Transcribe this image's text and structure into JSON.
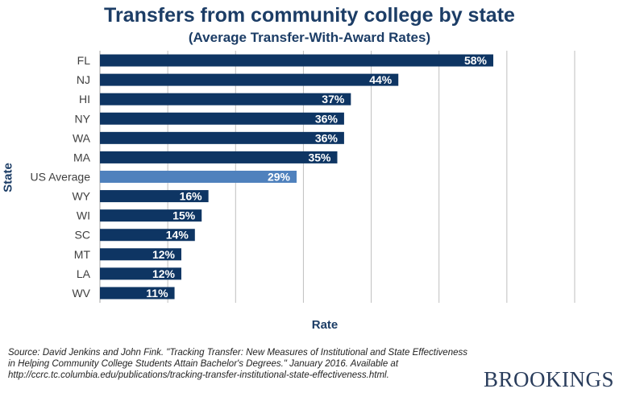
{
  "chart_data": {
    "type": "bar",
    "orientation": "horizontal",
    "title": "Transfers from community college by state",
    "subtitle": "(Average  Transfer-With-Award  Rates)",
    "xlabel": "Rate",
    "ylabel": "State",
    "categories": [
      "FL",
      "NJ",
      "HI",
      "NY",
      "WA",
      "MA",
      "US Average",
      "WY",
      "WI",
      "SC",
      "MT",
      "LA",
      "WV"
    ],
    "values": [
      58,
      44,
      37,
      36,
      36,
      35,
      29,
      16,
      15,
      14,
      12,
      12,
      11
    ],
    "data_labels": [
      "58%",
      "44%",
      "37%",
      "36%",
      "36%",
      "35%",
      "29%",
      "16%",
      "15%",
      "14%",
      "12%",
      "12%",
      "11%"
    ],
    "highlight_category": "US Average",
    "xlim": [
      0,
      70
    ],
    "grid": "vertical",
    "colors": {
      "bar": "#0e3563",
      "highlight": "#4f81bd",
      "grid": "#bfbfbf"
    }
  },
  "source": "Source: David Jenkins and John Fink. \"Tracking Transfer: New Measures of Institutional and State Effectiveness in Helping Community College Students Attain Bachelor's Degrees.\"  January 2016. Available at  http://ccrc.tc.columbia.edu/publications/tracking-transfer-institutional-state-effectiveness.html.",
  "brand": "BROOKINGS"
}
